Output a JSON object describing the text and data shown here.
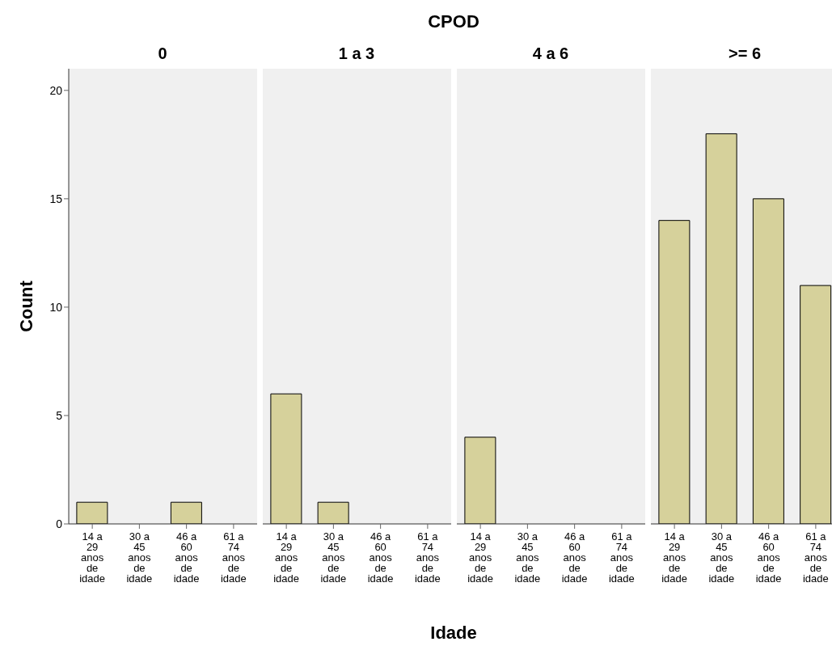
{
  "chart_data": [
    {
      "type": "bar",
      "title": "0",
      "ylabel": "Count",
      "annotations": [
        "CPOD",
        "Idade"
      ],
      "categories": [
        "14 a 29 anos de idade",
        "30 a 45 anos de idade",
        "46 a 60 anos de idade",
        "61 a 74 anos de idade"
      ],
      "values": [
        1,
        0,
        1,
        0
      ],
      "color": "#d6d19b",
      "ylim": [
        0,
        21
      ],
      "yticks": [
        0,
        5,
        10,
        15,
        20
      ],
      "grid": false
    },
    {
      "type": "bar",
      "title": "1 a 3",
      "categories": [
        "14 a 29 anos de idade",
        "30 a 45 anos de idade",
        "46 a 60 anos de idade",
        "61 a 74 anos de idade"
      ],
      "values": [
        6,
        1,
        0,
        0
      ],
      "color": "#d6d19b",
      "ylim": [
        0,
        21
      ],
      "yticks": [
        0,
        5,
        10,
        15,
        20
      ],
      "grid": false,
      "tick_labels": "x"
    },
    {
      "type": "bar",
      "title": "4 a 6",
      "categories": [
        "14 a 29 anos de idade",
        "30 a 45 anos de idade",
        "46 a 60 anos de idade",
        "61 a 74 anos de idade"
      ],
      "values": [
        4,
        0,
        0,
        0
      ],
      "color": "#d6d19b",
      "ylim": [
        0,
        21
      ],
      "yticks": [
        0,
        5,
        10,
        15,
        20
      ],
      "grid": false,
      "tick_labels": "x"
    },
    {
      "type": "bar",
      "title": ">= 6",
      "categories": [
        "14 a 29 anos de idade",
        "30 a 45 anos de idade",
        "46 a 60 anos de idade",
        "61 a 74 anos de idade"
      ],
      "values": [
        14,
        18,
        15,
        11
      ],
      "color": "#d6d19b",
      "ylim": [
        0,
        21
      ],
      "yticks": [
        0,
        5,
        10,
        15,
        20
      ],
      "grid": false,
      "tick_labels": "x"
    }
  ]
}
